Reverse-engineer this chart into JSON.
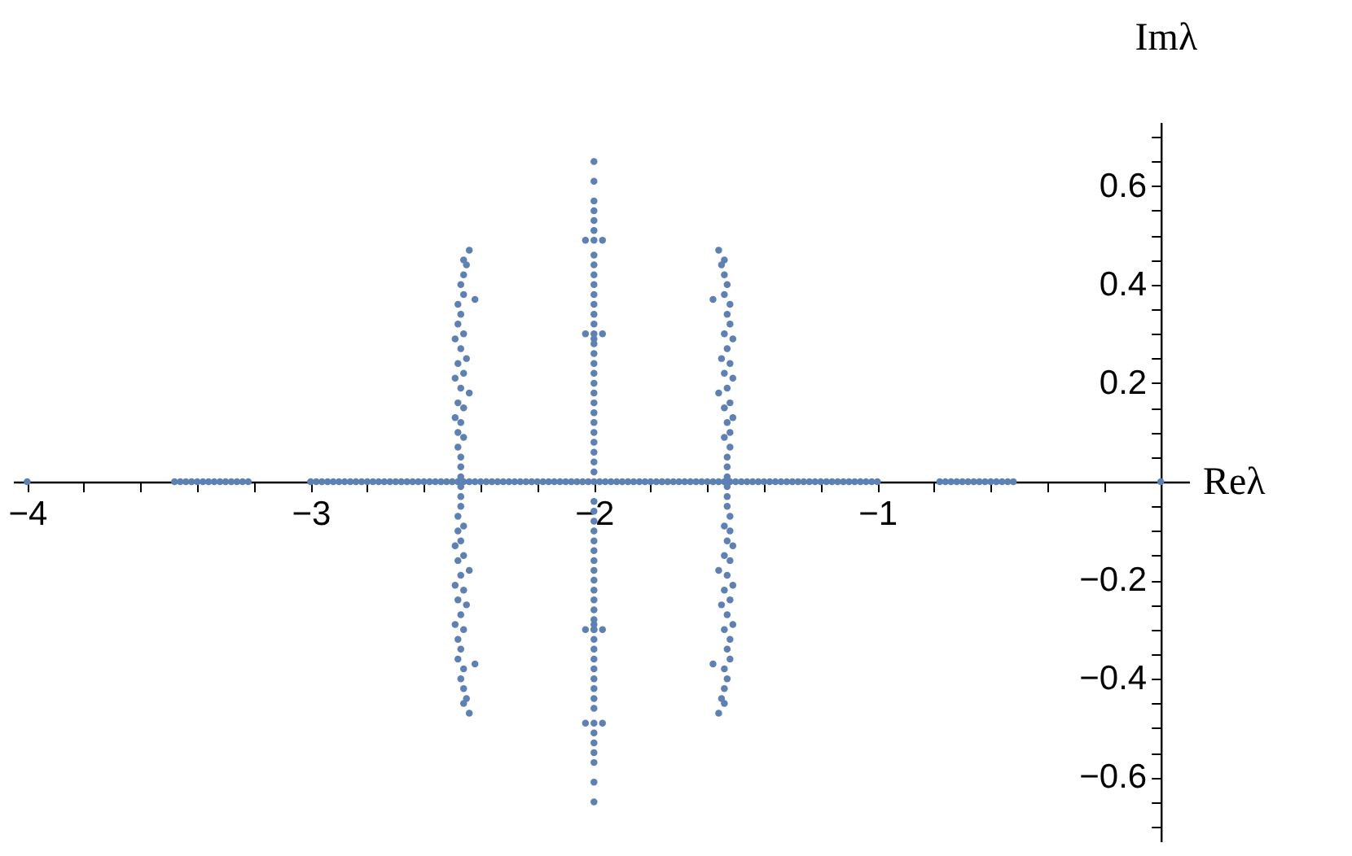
{
  "chart_data": {
    "type": "scatter",
    "xlabel": "Reλ",
    "ylabel": "Imλ",
    "marker": "circle",
    "grid": false,
    "legend": false,
    "xlim": [
      -4.05,
      0.1
    ],
    "ylim": [
      -0.73,
      0.73
    ],
    "xticks": [
      {
        "value": -4,
        "label": "−4"
      },
      {
        "value": -3.8,
        "label": null
      },
      {
        "value": -3.6,
        "label": null
      },
      {
        "value": -3.4,
        "label": null
      },
      {
        "value": -3.2,
        "label": null
      },
      {
        "value": -3,
        "label": "−3"
      },
      {
        "value": -2.8,
        "label": null
      },
      {
        "value": -2.6,
        "label": null
      },
      {
        "value": -2.4,
        "label": null
      },
      {
        "value": -2.2,
        "label": null
      },
      {
        "value": -2,
        "label": "−2"
      },
      {
        "value": -1.8,
        "label": null
      },
      {
        "value": -1.6,
        "label": null
      },
      {
        "value": -1.4,
        "label": null
      },
      {
        "value": -1.2,
        "label": null
      },
      {
        "value": -1,
        "label": "−1"
      },
      {
        "value": -0.8,
        "label": null
      },
      {
        "value": -0.6,
        "label": null
      },
      {
        "value": -0.4,
        "label": null
      },
      {
        "value": -0.2,
        "label": null
      }
    ],
    "yticks": [
      {
        "value": -0.7,
        "label": null
      },
      {
        "value": -0.65,
        "label": null
      },
      {
        "value": -0.6,
        "label": "−0.6"
      },
      {
        "value": -0.55,
        "label": null
      },
      {
        "value": -0.5,
        "label": null
      },
      {
        "value": -0.45,
        "label": null
      },
      {
        "value": -0.4,
        "label": "−0.4"
      },
      {
        "value": -0.35,
        "label": null
      },
      {
        "value": -0.3,
        "label": null
      },
      {
        "value": -0.25,
        "label": null
      },
      {
        "value": -0.2,
        "label": "−0.2"
      },
      {
        "value": -0.15,
        "label": null
      },
      {
        "value": -0.1,
        "label": null
      },
      {
        "value": -0.05,
        "label": null
      },
      {
        "value": 0.05,
        "label": null
      },
      {
        "value": 0.1,
        "label": null
      },
      {
        "value": 0.15,
        "label": null
      },
      {
        "value": 0.2,
        "label": "0.2"
      },
      {
        "value": 0.25,
        "label": null
      },
      {
        "value": 0.3,
        "label": null
      },
      {
        "value": 0.35,
        "label": null
      },
      {
        "value": 0.4,
        "label": "0.4"
      },
      {
        "value": 0.45,
        "label": null
      },
      {
        "value": 0.5,
        "label": null
      },
      {
        "value": 0.55,
        "label": null
      },
      {
        "value": 0.6,
        "label": "0.6"
      },
      {
        "value": 0.65,
        "label": null
      },
      {
        "value": 0.7,
        "label": null
      }
    ],
    "series": [
      {
        "color": "#5e81b5",
        "x": [
          -4,
          -3.48,
          -3.46,
          -3.44,
          -3.42,
          -3.4,
          -3.38,
          -3.36,
          -3.34,
          -3.32,
          -3.3,
          -3.28,
          -3.26,
          -3.24,
          -3.22,
          -3,
          -2.98,
          -2.96,
          -2.94,
          -2.92,
          -2.9,
          -2.88,
          -2.86,
          -2.84,
          -2.82,
          -2.8,
          -2.78,
          -2.76,
          -2.74,
          -2.72,
          -2.7,
          -2.68,
          -2.66,
          -2.64,
          -2.62,
          -2.6,
          -2.58,
          -2.56,
          -2.54,
          -2.52,
          -2.5,
          -2.48,
          -2.46,
          -2.44,
          -2.42,
          -2.4,
          -2.38,
          -2.36,
          -2.34,
          -2.32,
          -2.3,
          -2.28,
          -2.26,
          -2.24,
          -2.22,
          -2.2,
          -2.18,
          -2.16,
          -2.14,
          -2.12,
          -2.1,
          -2.08,
          -2.06,
          -2.04,
          -2.02,
          -2,
          -1.98,
          -1.96,
          -1.94,
          -1.92,
          -1.9,
          -1.88,
          -1.86,
          -1.84,
          -1.82,
          -1.8,
          -1.78,
          -1.76,
          -1.74,
          -1.72,
          -1.7,
          -1.68,
          -1.66,
          -1.64,
          -1.62,
          -1.6,
          -1.58,
          -1.56,
          -1.54,
          -1.52,
          -1.5,
          -1.48,
          -1.46,
          -1.44,
          -1.42,
          -1.4,
          -1.38,
          -1.36,
          -1.34,
          -1.32,
          -1.3,
          -1.28,
          -1.26,
          -1.24,
          -1.22,
          -1.2,
          -1.18,
          -1.16,
          -1.14,
          -1.12,
          -1.1,
          -1.08,
          -1.06,
          -1.04,
          -1.02,
          -1,
          -0.78,
          -0.76,
          -0.74,
          -0.72,
          -0.7,
          -0.68,
          -0.66,
          -0.64,
          -0.62,
          -0.6,
          -0.58,
          -0.56,
          -0.54,
          -0.52,
          0
        ],
        "values": [
          0,
          0,
          0,
          0,
          0,
          0,
          0,
          0,
          0,
          0,
          0,
          0,
          0,
          0,
          0,
          0,
          0,
          0,
          0,
          0,
          0,
          0,
          0,
          0,
          0,
          0,
          0,
          0,
          0,
          0,
          0,
          0,
          0,
          0,
          0,
          0,
          0,
          0,
          0,
          0,
          0,
          0,
          0,
          0,
          0,
          0,
          0,
          0,
          0,
          0,
          0,
          0,
          0,
          0,
          0,
          0,
          0,
          0,
          0,
          0,
          0,
          0,
          0,
          0,
          0,
          0,
          0,
          0,
          0,
          0,
          0,
          0,
          0,
          0,
          0,
          0,
          0,
          0,
          0,
          0,
          0,
          0,
          0,
          0,
          0,
          0,
          0,
          0,
          0,
          0,
          0,
          0,
          0,
          0,
          0,
          0,
          0,
          0,
          0,
          0,
          0,
          0,
          0,
          0,
          0,
          0,
          0,
          0,
          0,
          0,
          0,
          0,
          0,
          0,
          0,
          0,
          0,
          0,
          0,
          0,
          0,
          0,
          0,
          0,
          0,
          0,
          0,
          0,
          0,
          0,
          0
        ]
      },
      {
        "color": "#5e81b5",
        "x": [
          -2,
          -2,
          -2,
          -2,
          -2,
          -2,
          -2,
          -2.03,
          -1.97,
          -2,
          -2,
          -2,
          -2,
          -2,
          -2,
          -2,
          -2,
          -2,
          -2.03,
          -1.97,
          -2,
          -2,
          -2,
          -2,
          -2,
          -2,
          -2,
          -2,
          -2,
          -2,
          -2,
          -2,
          -2,
          -2,
          -2,
          -2,
          -2,
          -2,
          -2,
          -2,
          -2,
          -2,
          -2.03,
          -1.97,
          -2,
          -2,
          -2,
          -2,
          -2,
          -2,
          -2,
          -2,
          -2,
          -2,
          -2.03,
          -1.97,
          -2,
          -2,
          -2,
          -2,
          -2,
          -2,
          -2,
          -2,
          -2,
          -2,
          -2,
          -2,
          -2,
          -2
        ],
        "values": [
          0.65,
          0.61,
          0.57,
          0.55,
          0.53,
          0.51,
          0.49,
          0.49,
          0.49,
          0.46,
          0.44,
          0.42,
          0.4,
          0.38,
          0.36,
          0.34,
          0.32,
          0.3,
          0.3,
          0.3,
          0.29,
          0.28,
          0.26,
          0.24,
          0.22,
          0.2,
          0.18,
          0.16,
          0.14,
          0.12,
          0.1,
          0.08,
          0.06,
          0.04,
          0.02,
          -0.65,
          -0.61,
          -0.57,
          -0.55,
          -0.53,
          -0.51,
          -0.49,
          -0.49,
          -0.49,
          -0.46,
          -0.44,
          -0.42,
          -0.4,
          -0.38,
          -0.36,
          -0.34,
          -0.32,
          -0.3,
          -0.3,
          -0.3,
          -0.3,
          -0.29,
          -0.28,
          -0.26,
          -0.24,
          -0.22,
          -0.2,
          -0.18,
          -0.16,
          -0.14,
          -0.12,
          -0.1,
          -0.08,
          -0.06,
          -0.04
        ]
      },
      {
        "color": "#5e81b5",
        "x": [
          -2.44,
          -2.46,
          -2.45,
          -2.46,
          -2.47,
          -2.46,
          -2.42,
          -2.48,
          -2.47,
          -2.48,
          -2.46,
          -2.49,
          -2.47,
          -2.45,
          -2.48,
          -2.46,
          -2.49,
          -2.47,
          -2.44,
          -2.48,
          -2.46,
          -2.49,
          -2.47,
          -2.48,
          -2.46,
          -2.48,
          -2.47,
          -2.47,
          -2.47,
          -2.44,
          -2.46,
          -2.45,
          -2.46,
          -2.47,
          -2.46,
          -2.42,
          -2.48,
          -2.47,
          -2.48,
          -2.46,
          -2.49,
          -2.47,
          -2.45,
          -2.48,
          -2.46,
          -2.49,
          -2.47,
          -2.44,
          -2.48,
          -2.46,
          -2.49,
          -2.47,
          -2.48,
          -2.46,
          -2.48,
          -2.47,
          -2.47,
          -2.47
        ],
        "values": [
          0.47,
          0.45,
          0.44,
          0.42,
          0.4,
          0.38,
          0.37,
          0.36,
          0.34,
          0.32,
          0.3,
          0.29,
          0.27,
          0.25,
          0.24,
          0.22,
          0.21,
          0.19,
          0.18,
          0.16,
          0.15,
          0.13,
          0.12,
          0.1,
          0.09,
          0.07,
          0.05,
          0.03,
          0.01,
          -0.47,
          -0.45,
          -0.44,
          -0.42,
          -0.4,
          -0.38,
          -0.37,
          -0.36,
          -0.34,
          -0.32,
          -0.3,
          -0.29,
          -0.27,
          -0.25,
          -0.24,
          -0.22,
          -0.21,
          -0.19,
          -0.18,
          -0.16,
          -0.15,
          -0.13,
          -0.12,
          -0.1,
          -0.09,
          -0.07,
          -0.05,
          -0.03,
          -0.01
        ]
      },
      {
        "color": "#5e81b5",
        "x": [
          -1.56,
          -1.54,
          -1.55,
          -1.54,
          -1.53,
          -1.54,
          -1.58,
          -1.52,
          -1.53,
          -1.52,
          -1.54,
          -1.51,
          -1.53,
          -1.55,
          -1.52,
          -1.54,
          -1.51,
          -1.53,
          -1.56,
          -1.52,
          -1.54,
          -1.51,
          -1.53,
          -1.52,
          -1.54,
          -1.52,
          -1.53,
          -1.53,
          -1.53,
          -1.56,
          -1.54,
          -1.55,
          -1.54,
          -1.53,
          -1.54,
          -1.58,
          -1.52,
          -1.53,
          -1.52,
          -1.54,
          -1.51,
          -1.53,
          -1.55,
          -1.52,
          -1.54,
          -1.51,
          -1.53,
          -1.56,
          -1.52,
          -1.54,
          -1.51,
          -1.53,
          -1.52,
          -1.54,
          -1.52,
          -1.53,
          -1.53,
          -1.53
        ],
        "values": [
          0.47,
          0.45,
          0.44,
          0.42,
          0.4,
          0.38,
          0.37,
          0.36,
          0.34,
          0.32,
          0.3,
          0.29,
          0.27,
          0.25,
          0.24,
          0.22,
          0.21,
          0.19,
          0.18,
          0.16,
          0.15,
          0.13,
          0.12,
          0.1,
          0.09,
          0.07,
          0.05,
          0.03,
          0.01,
          -0.47,
          -0.45,
          -0.44,
          -0.42,
          -0.4,
          -0.38,
          -0.37,
          -0.36,
          -0.34,
          -0.32,
          -0.3,
          -0.29,
          -0.27,
          -0.25,
          -0.24,
          -0.22,
          -0.21,
          -0.19,
          -0.18,
          -0.16,
          -0.15,
          -0.13,
          -0.12,
          -0.1,
          -0.09,
          -0.07,
          -0.05,
          -0.03,
          -0.01
        ]
      }
    ]
  }
}
